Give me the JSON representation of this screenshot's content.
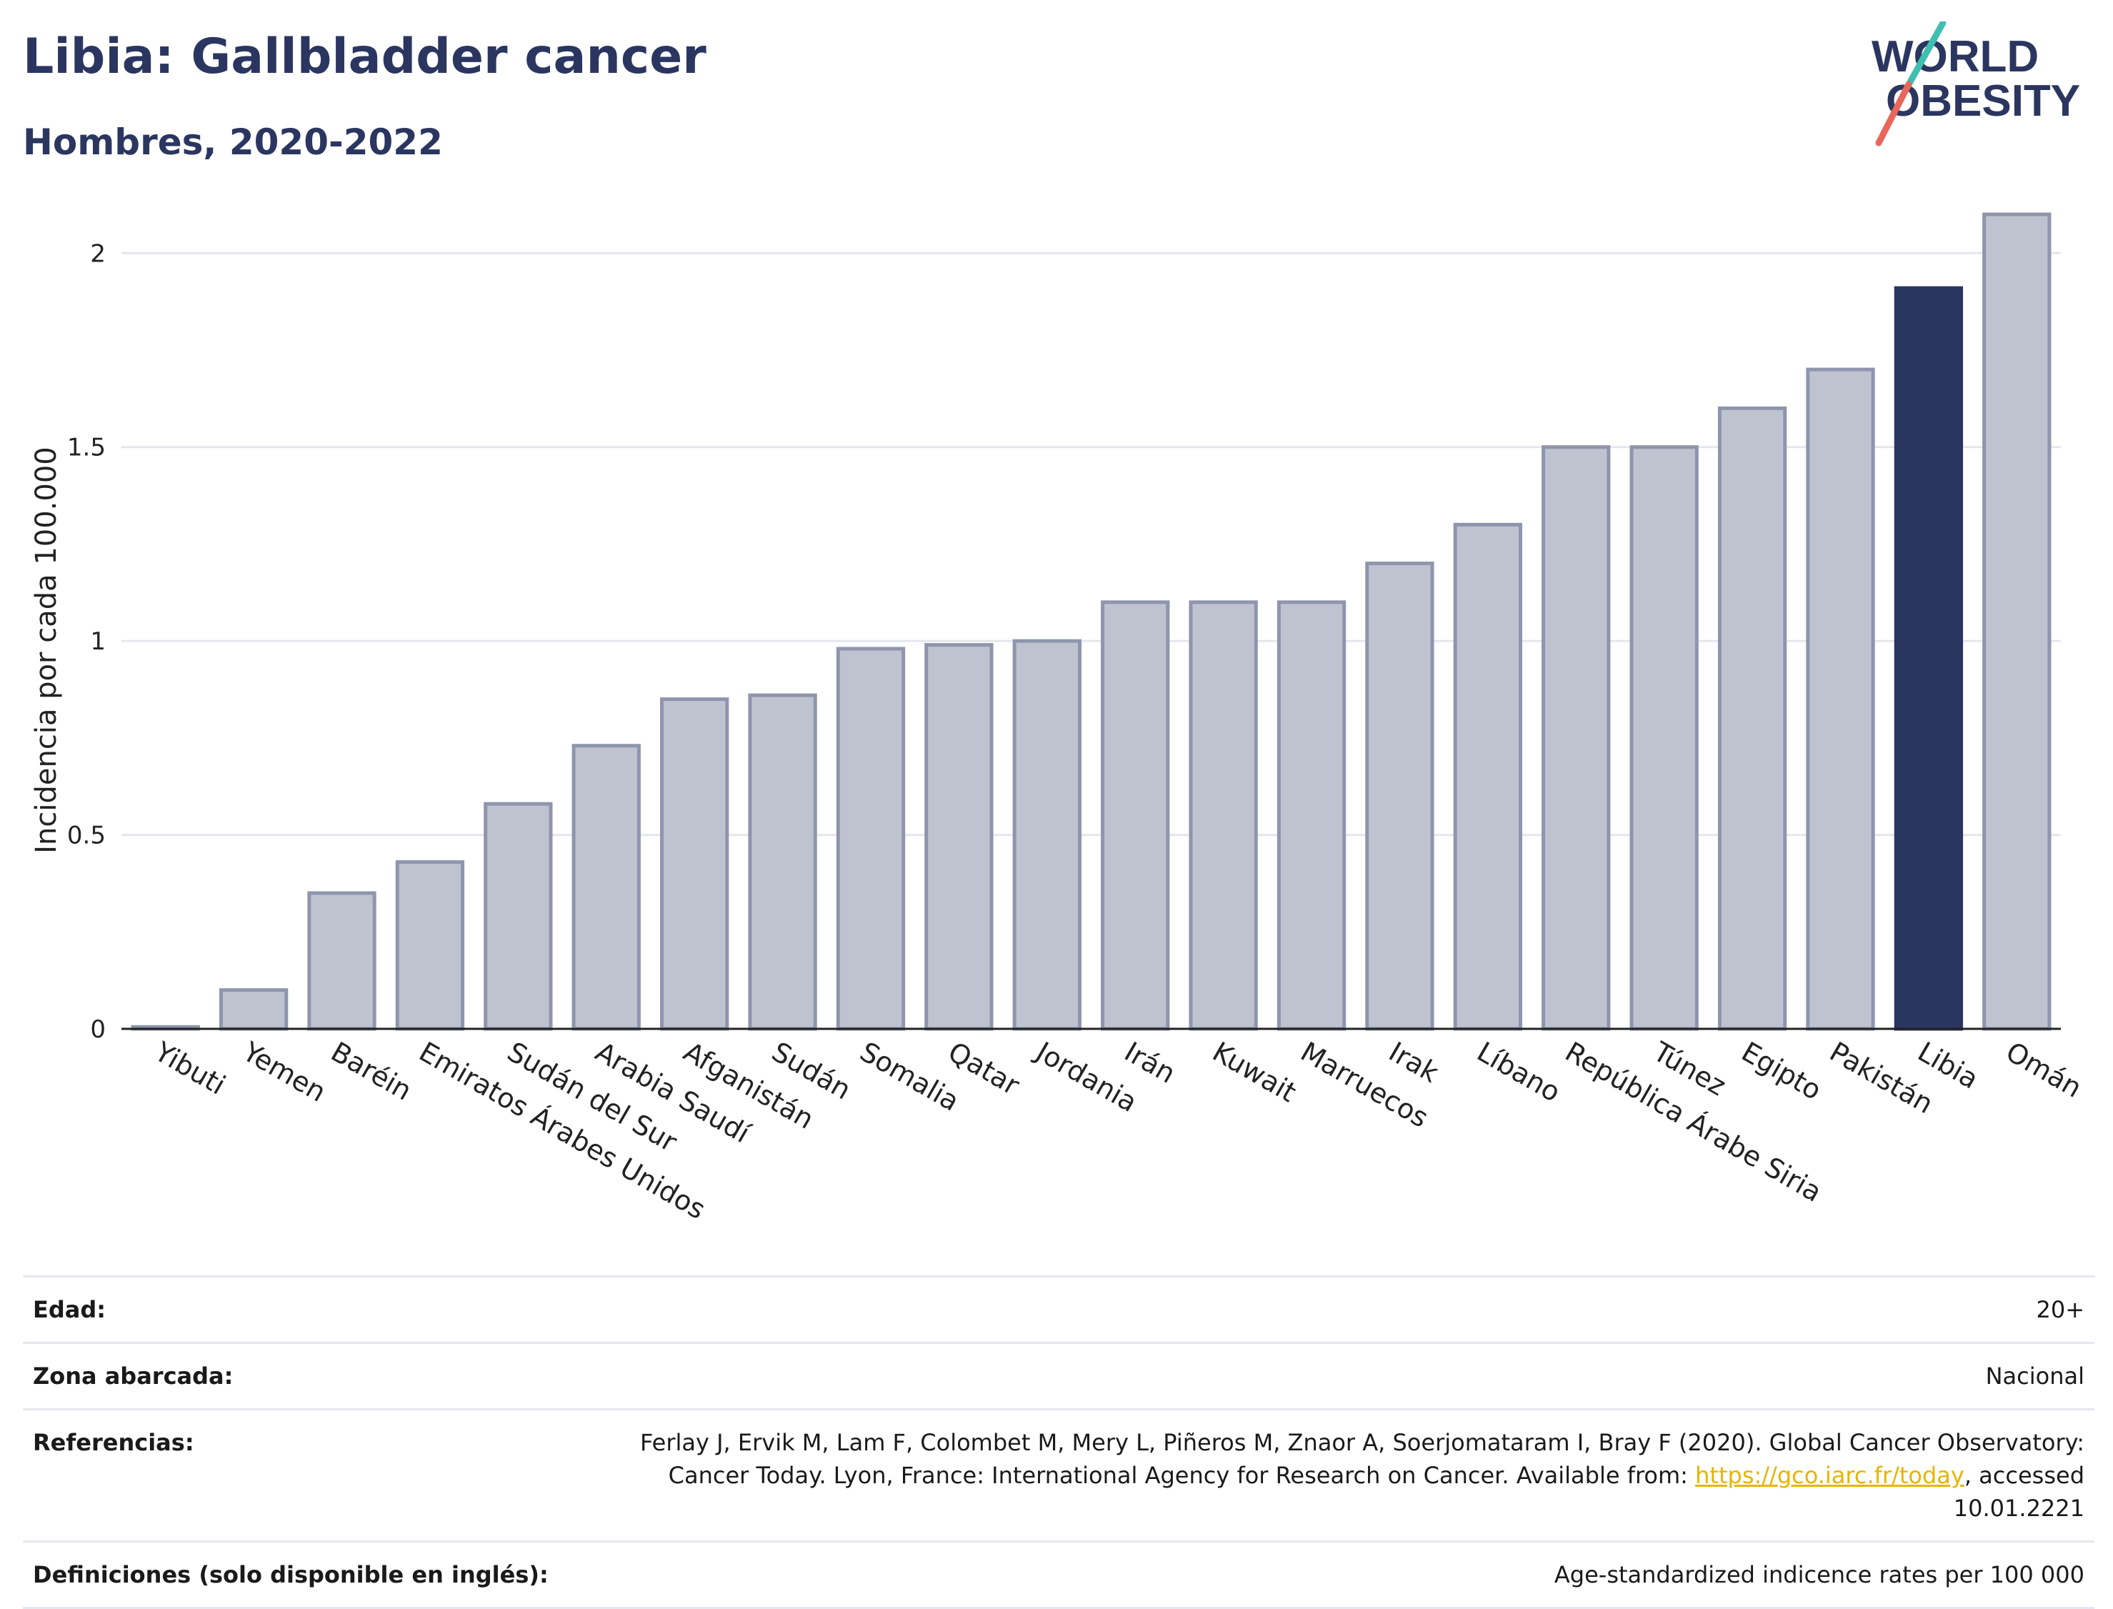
{
  "header": {
    "title": "Libia: Gallbladder cancer",
    "subtitle": "Hombres, 2020-2022",
    "logo_line1": "WORLD",
    "logo_line2": "OBESITY"
  },
  "chart_data": {
    "type": "bar",
    "ylabel": "Incidencia por cada 100.000",
    "xlabel": "",
    "ylim": [
      0,
      2.1
    ],
    "yticks": [
      0,
      0.5,
      1,
      1.5,
      2
    ],
    "ytick_labels": [
      "0",
      "0.5",
      "1",
      "1.5",
      "2"
    ],
    "grid": true,
    "categories": [
      "Yibuti",
      "Yemen",
      "Baréin",
      "Emiratos Árabes Unidos",
      "Sudán del Sur",
      "Arabia Saudí",
      "Afganistán",
      "Sudán",
      "Somalia",
      "Qatar",
      "Jordania",
      "Irán",
      "Kuwait",
      "Marruecos",
      "Irak",
      "Líbano",
      "República Árabe Siria",
      "Túnez",
      "Egipto",
      "Pakistán",
      "Libia",
      "Omán"
    ],
    "values": [
      0.005,
      0.1,
      0.35,
      0.43,
      0.58,
      0.73,
      0.85,
      0.86,
      0.98,
      0.99,
      1.0,
      1.1,
      1.1,
      1.1,
      1.2,
      1.3,
      1.5,
      1.5,
      1.6,
      1.7,
      1.91,
      2.1
    ],
    "highlight": "Libia",
    "colors": {
      "bar": "#bfc3d0",
      "bar_border": "#8e95ad",
      "highlight": "#2b3660",
      "axis": "#222222",
      "grid": "#e4e6ec"
    }
  },
  "info_table": {
    "rows": [
      {
        "label": "Edad:",
        "value": "20+"
      },
      {
        "label": "Zona abarcada:",
        "value": "Nacional"
      },
      {
        "label": "Referencias:",
        "value_before": "Ferlay J, Ervik M, Lam F, Colombet M, Mery L, Piñeros M, Znaor A, Soerjomataram I, Bray F (2020). Global Cancer Observatory: Cancer Today. Lyon, France: International Agency for Research on Cancer. Available from: ",
        "link": "https://gco.iarc.fr/today",
        "value_after": ", accessed 10.01.2221"
      },
      {
        "label": "Definiciones (solo disponible en inglés):",
        "value": "Age-standardized indicence rates per 100 000"
      }
    ]
  }
}
